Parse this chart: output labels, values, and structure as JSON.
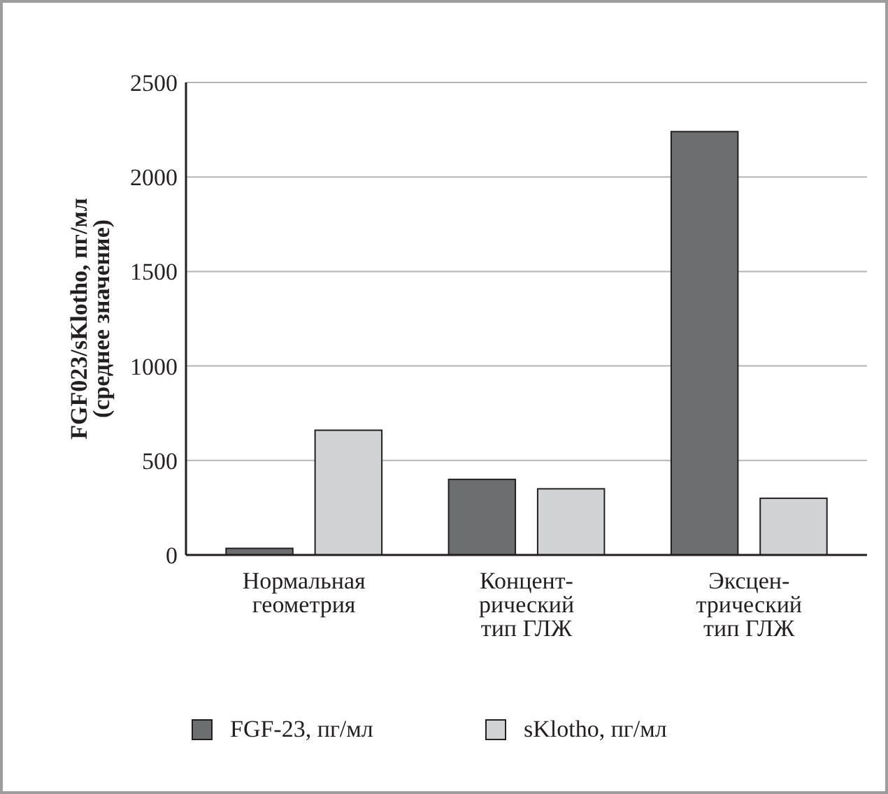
{
  "chart_data": {
    "type": "bar",
    "ylabel": "FGF023/sKlotho, пг/мл\n(среднее значение)",
    "categories": [
      "Нормальная\nгеометрия",
      "Концент-\nрический\nтип ГЛЖ",
      "Эксцен-\nтрический\nтип ГЛЖ"
    ],
    "series": [
      {
        "name": "FGF-23, пг/мл",
        "color": "#6d6e70",
        "values": [
          35,
          400,
          2240
        ]
      },
      {
        "name": "sKlotho, пг/мл",
        "color": "#d1d2d4",
        "values": [
          660,
          350,
          300
        ]
      }
    ],
    "ylim": [
      0,
      2500
    ],
    "yticks": [
      0,
      500,
      1000,
      1500,
      2000,
      2500
    ],
    "grid": "y",
    "legend": "bottom"
  }
}
